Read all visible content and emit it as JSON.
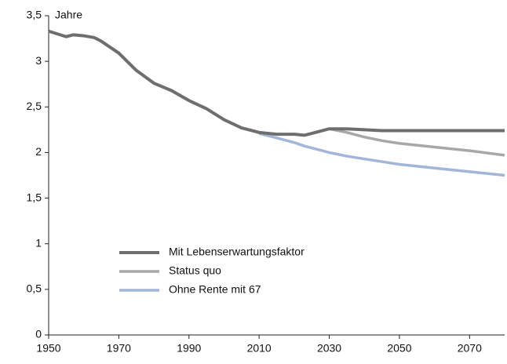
{
  "chart_data": {
    "type": "line",
    "y_unit_label": "Jahre",
    "x": [
      1950,
      1955,
      1957,
      1960,
      1963,
      1965,
      1970,
      1975,
      1980,
      1985,
      1990,
      1995,
      2000,
      2005,
      2010,
      2015,
      2020,
      2023,
      2025,
      2030,
      2035,
      2040,
      2045,
      2050,
      2060,
      2070,
      2080
    ],
    "series": [
      {
        "name": "Mit Lebenserwartungsfaktor",
        "color": "#6e6e6e",
        "width": 4,
        "values": [
          3.33,
          3.27,
          3.29,
          3.28,
          3.26,
          3.22,
          3.09,
          2.9,
          2.76,
          2.68,
          2.57,
          2.48,
          2.36,
          2.27,
          2.22,
          2.2,
          2.2,
          2.19,
          2.21,
          2.26,
          2.26,
          2.25,
          2.24,
          2.24,
          2.24,
          2.24,
          2.24
        ]
      },
      {
        "name": "Status quo",
        "color": "#a8a8a8",
        "width": 3.5,
        "values": [
          null,
          null,
          null,
          null,
          null,
          null,
          null,
          null,
          null,
          null,
          null,
          null,
          null,
          null,
          null,
          null,
          null,
          null,
          null,
          2.26,
          2.22,
          2.17,
          2.13,
          2.1,
          2.06,
          2.02,
          1.97
        ]
      },
      {
        "name": "Ohne Rente mit 67",
        "color": "#a3b5d8",
        "width": 3.5,
        "values": [
          null,
          null,
          null,
          null,
          null,
          null,
          null,
          null,
          null,
          null,
          null,
          null,
          null,
          null,
          2.21,
          2.16,
          2.11,
          2.07,
          2.05,
          2.0,
          1.96,
          1.93,
          1.9,
          1.87,
          1.83,
          1.79,
          1.75
        ]
      }
    ],
    "xlim": [
      1950,
      2080
    ],
    "xticks": [
      1950,
      1970,
      1990,
      2010,
      2030,
      2050,
      2070
    ],
    "ylim": [
      0,
      3.5
    ],
    "yticks": [
      0,
      {
        "value": 0.5,
        "label": "0,5"
      },
      1,
      {
        "value": 1.5,
        "label": "1,5"
      },
      2,
      {
        "value": 2.5,
        "label": "2,5"
      },
      3,
      {
        "value": 3.5,
        "label": "3,5"
      }
    ],
    "grid": false
  }
}
